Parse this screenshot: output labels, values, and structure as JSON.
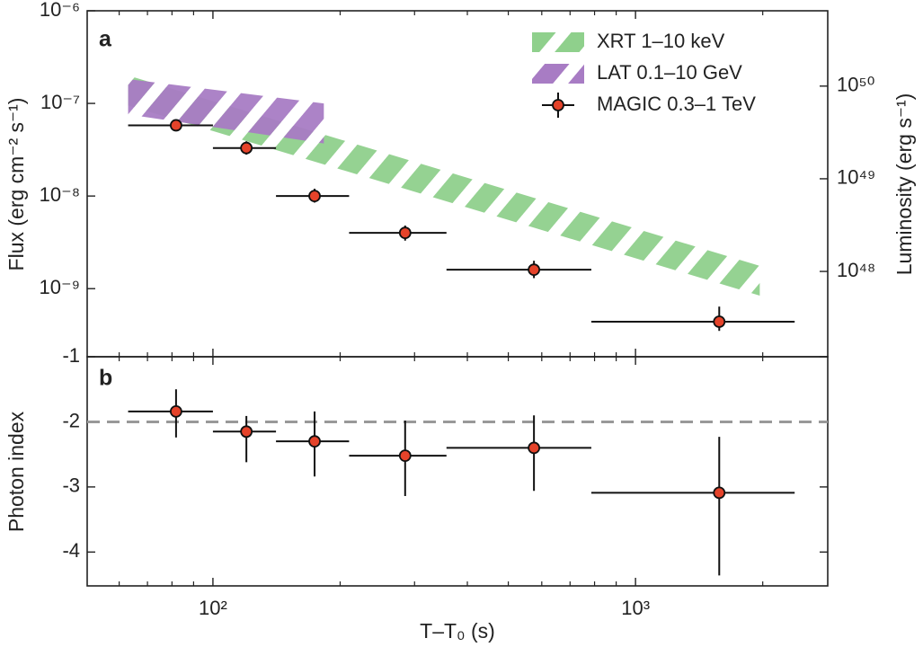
{
  "chart_data": {
    "type": "errorbar",
    "xlog": true,
    "xlabel": "T–T₀ (s)",
    "xlim": [
      50.4,
      2850
    ],
    "xticks": [
      {
        "value": 100,
        "label": "10²"
      },
      {
        "value": 1000,
        "label": "10³"
      }
    ],
    "xminorticks": [
      60,
      70,
      80,
      90,
      200,
      300,
      400,
      500,
      600,
      700,
      800,
      900,
      2000
    ],
    "panels": [
      {
        "panel_label": "a",
        "ylabel": "Flux (erg cm⁻² s⁻¹)",
        "y2label": "Luminosity (erg s⁻¹)",
        "ylog": true,
        "ylim": [
          1.84e-10,
          1e-06
        ],
        "yticks": [
          {
            "value": 1e-06,
            "label": "10⁻⁶"
          },
          {
            "value": 1e-07,
            "label": "10⁻⁷"
          },
          {
            "value": 1e-08,
            "label": "10⁻⁸"
          },
          {
            "value": 1e-09,
            "label": "10⁻⁹"
          }
        ],
        "y2lim": [
          1.2e+47,
          6.5e+50
        ],
        "y2ticks": [
          {
            "value": 1e+50,
            "label": "10⁵⁰"
          },
          {
            "value": 1e+49,
            "label": "10⁴⁹"
          },
          {
            "value": 1e+48,
            "label": "10⁴⁸"
          }
        ],
        "legend": "upper right",
        "series": [
          {
            "name": "XRT 1–10 keV",
            "type": "band",
            "color": "#8fd08c",
            "x": [
              63,
              1968
            ],
            "upper": [
              2e-07,
              1.76e-09
            ],
            "lower": [
              9.5e-08,
              8.4e-10
            ]
          },
          {
            "name": "LAT 0.1–10 GeV",
            "type": "band",
            "color": "#a87cc4",
            "x": [
              63,
              183
            ],
            "upper": [
              1.83e-07,
              1e-07
            ],
            "lower": [
              7.6e-08,
              3.7e-08
            ]
          },
          {
            "name": "MAGIC 0.3–1 TeV",
            "type": "errorbar",
            "color": "#e5432a",
            "x": [
              81.8,
              120,
              174,
              285,
              575,
              1578
            ],
            "xlow": [
              63,
              100,
              141,
              210,
              357,
              786
            ],
            "xhigh": [
              100,
              141,
              210,
              357,
              786,
              2380
            ],
            "values": [
              5.8e-08,
              3.3e-08,
              1e-08,
              4e-09,
              1.6e-09,
              4.4e-10
            ],
            "ylow": [
              5.1e-08,
              2.8e-08,
              8.5e-09,
              3.3e-09,
              1.3e-09,
              3.5e-10
            ],
            "yhigh": [
              6.7e-08,
              3.9e-08,
              1.2e-08,
              4.8e-09,
              2e-09,
              6.4e-10
            ]
          }
        ]
      },
      {
        "panel_label": "b",
        "ylabel": "Photon index",
        "ylog": false,
        "ylim": [
          -4.52,
          -1
        ],
        "yticks": [
          -1,
          -2,
          -3,
          -4
        ],
        "reference_line": {
          "value": -2,
          "color": "#999999"
        },
        "series": [
          {
            "type": "errorbar",
            "color": "#e5432a",
            "x": [
              81.8,
              120,
              174,
              285,
              575,
              1578
            ],
            "xlow": [
              63,
              100,
              141,
              210,
              357,
              786
            ],
            "xhigh": [
              100,
              141,
              210,
              357,
              786,
              2380
            ],
            "values": [
              -1.84,
              -2.15,
              -2.3,
              -2.52,
              -2.4,
              -3.09
            ],
            "ylow": [
              -2.24,
              -2.62,
              -2.84,
              -3.14,
              -3.06,
              -4.36
            ],
            "yhigh": [
              -1.5,
              -1.91,
              -1.84,
              -1.98,
              -1.9,
              -2.23
            ]
          }
        ]
      }
    ]
  }
}
